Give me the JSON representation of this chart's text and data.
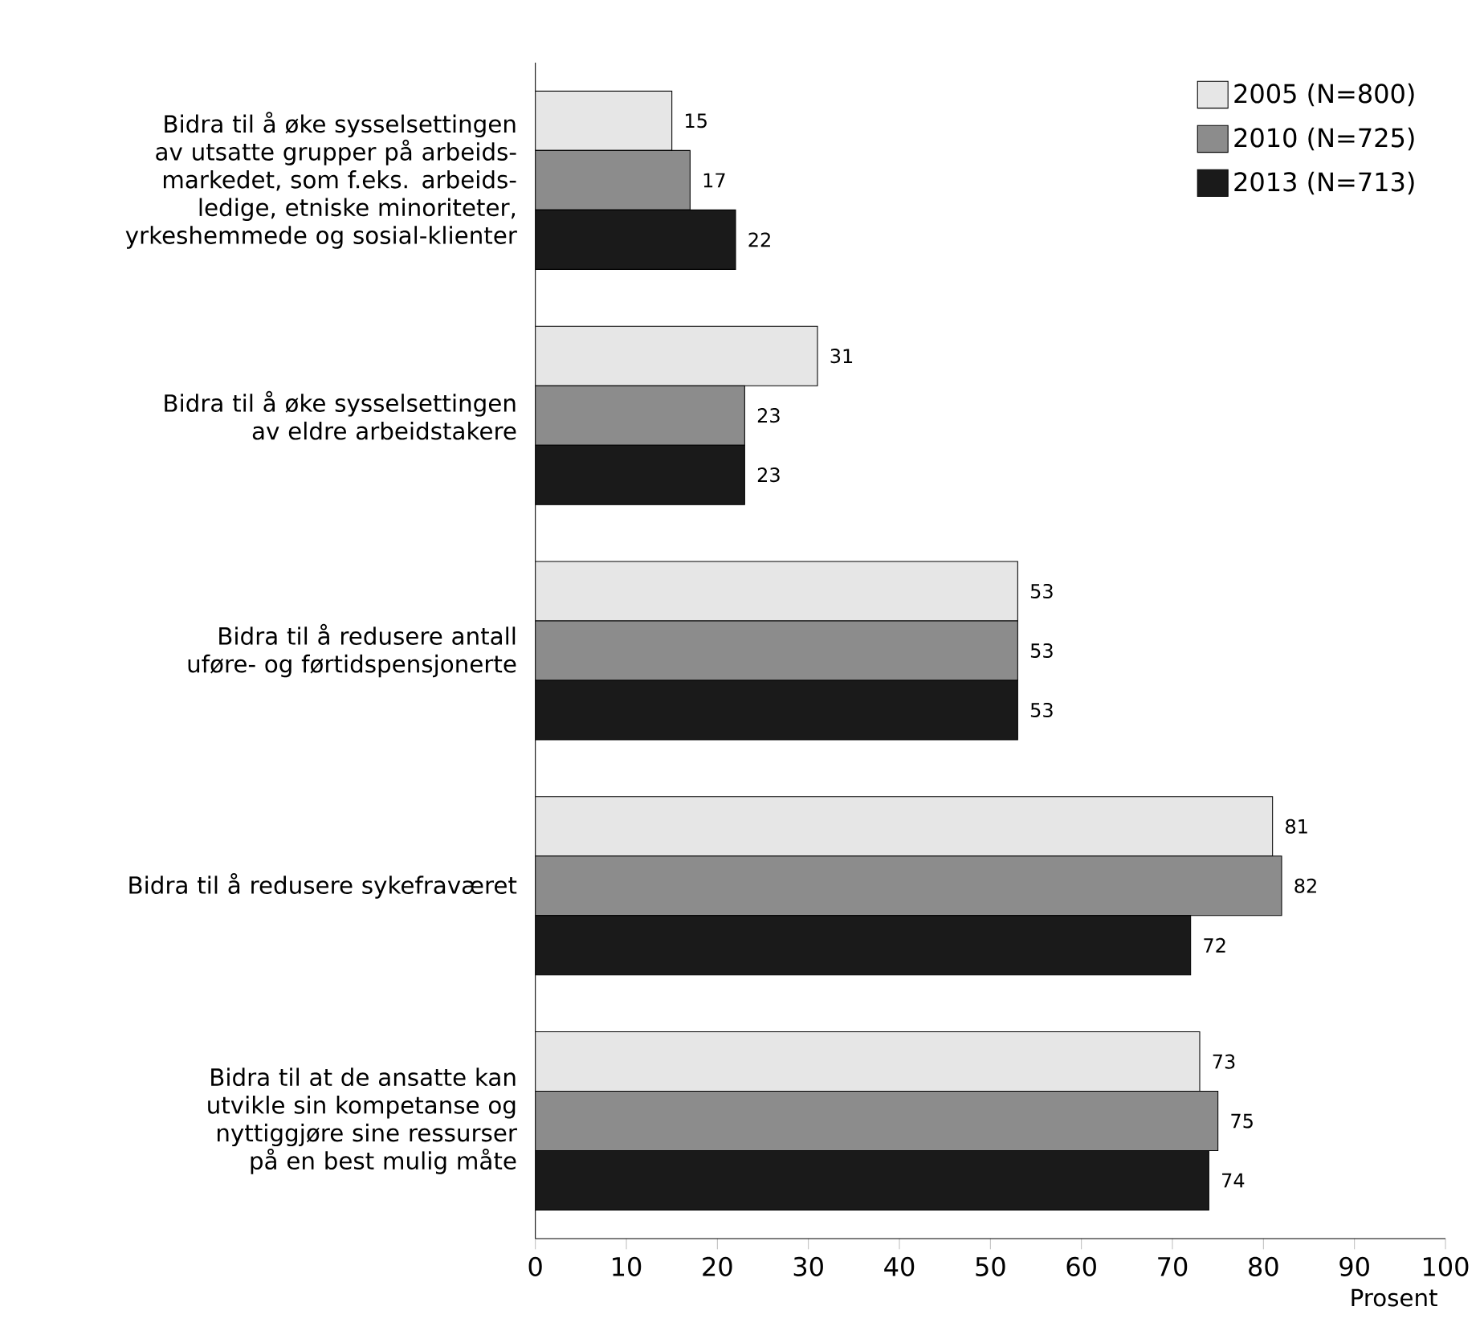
{
  "chart_data": {
    "type": "bar",
    "orientation": "horizontal",
    "categories": [
      "Bidra til å øke sysselsettingen av utsatte grupper på arbeids-markedet, som f.eks. arbeids-ledige, etniske minoriteter, yrkeshemmede og sosial-klienter",
      "Bidra til å øke sysselsettingen av eldre arbeidstakere",
      "Bidra til å redusere antall uføre- og førtidspensjonerte",
      "Bidra til å redusere sykefraværet",
      "Bidra til at de ansatte kan utvikle sin kompetanse og nyttiggjøre sine ressurser på en best mulig måte"
    ],
    "series": [
      {
        "name": "2005 (N=800)",
        "color": "#e6e6e6",
        "values": [
          15,
          31,
          53,
          81,
          73
        ]
      },
      {
        "name": "2010 (N=725)",
        "color": "#8c8c8c",
        "values": [
          17,
          23,
          53,
          82,
          75
        ]
      },
      {
        "name": "2013 (N=713)",
        "color": "#1a1a1a",
        "values": [
          22,
          23,
          53,
          72,
          74
        ]
      }
    ],
    "xlim": [
      0,
      100
    ],
    "xticks": [
      0,
      10,
      20,
      30,
      40,
      50,
      60,
      70,
      80,
      90,
      100
    ],
    "xlabel": "Prosent",
    "data_labels": true,
    "legend": "top right"
  }
}
